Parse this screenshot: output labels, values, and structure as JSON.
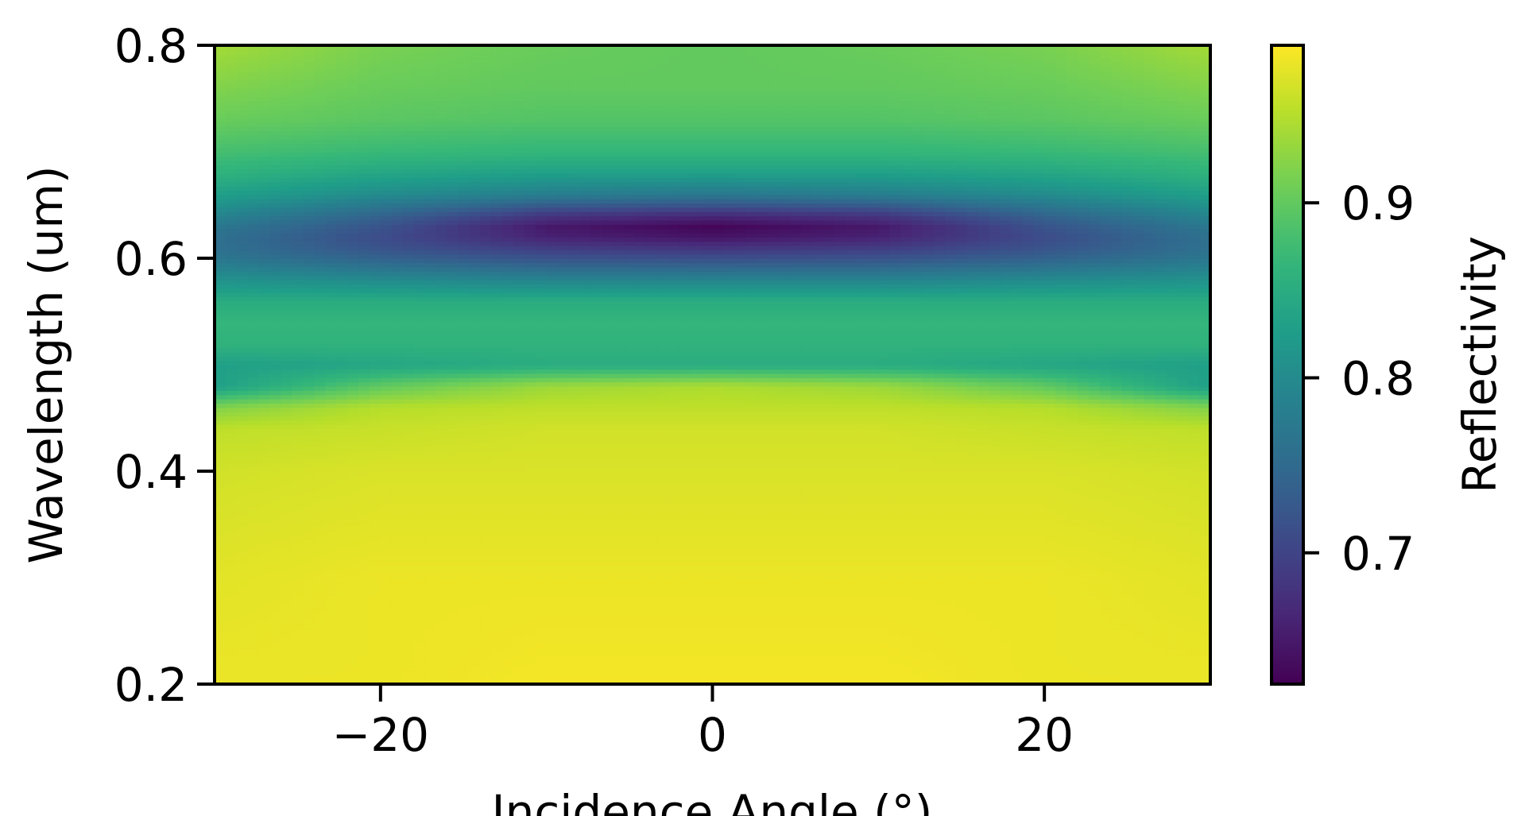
{
  "chart_data": {
    "type": "heatmap",
    "title": "",
    "xlabel": "Incidence Angle (°)",
    "ylabel": "Wavelength (um)",
    "xlim": [
      -30,
      30
    ],
    "ylim": [
      0.2,
      0.8
    ],
    "x_ticks": [
      -20,
      0,
      20
    ],
    "x_tick_labels": [
      "−20",
      "0",
      "20"
    ],
    "y_ticks": [
      0.2,
      0.4,
      0.6,
      0.8
    ],
    "y_tick_labels": [
      "0.2",
      "0.4",
      "0.6",
      "0.8"
    ],
    "grid": false,
    "colormap": "viridis",
    "colorbar": {
      "label": "Reflectivity",
      "range": [
        0.625,
        0.99
      ],
      "ticks": [
        0.7,
        0.8,
        0.9
      ],
      "tick_labels": [
        "0.7",
        "0.8",
        "0.9"
      ],
      "placement": "right"
    },
    "wavelengths": [
      0.2,
      0.3,
      0.35,
      0.4,
      0.44,
      0.46,
      0.48,
      0.5,
      0.52,
      0.54,
      0.56,
      0.58,
      0.6,
      0.61,
      0.62,
      0.63,
      0.64,
      0.65,
      0.66,
      0.68,
      0.7,
      0.73,
      0.76,
      0.8
    ],
    "angles": [
      -30,
      -20,
      -10,
      0,
      10,
      20,
      30
    ],
    "reflectivity": [
      [
        0.98,
        0.98,
        0.985,
        0.985,
        0.985,
        0.98,
        0.98
      ],
      [
        0.975,
        0.98,
        0.98,
        0.98,
        0.98,
        0.98,
        0.975
      ],
      [
        0.97,
        0.975,
        0.975,
        0.975,
        0.975,
        0.975,
        0.97
      ],
      [
        0.965,
        0.97,
        0.97,
        0.97,
        0.97,
        0.97,
        0.965
      ],
      [
        0.955,
        0.96,
        0.965,
        0.965,
        0.965,
        0.96,
        0.955
      ],
      [
        0.92,
        0.95,
        0.955,
        0.955,
        0.955,
        0.95,
        0.92
      ],
      [
        0.83,
        0.9,
        0.935,
        0.945,
        0.935,
        0.9,
        0.83
      ],
      [
        0.83,
        0.84,
        0.85,
        0.85,
        0.85,
        0.84,
        0.83
      ],
      [
        0.86,
        0.86,
        0.86,
        0.86,
        0.86,
        0.86,
        0.86
      ],
      [
        0.865,
        0.865,
        0.865,
        0.865,
        0.865,
        0.865,
        0.865
      ],
      [
        0.85,
        0.85,
        0.85,
        0.85,
        0.85,
        0.85,
        0.85
      ],
      [
        0.81,
        0.8,
        0.79,
        0.79,
        0.79,
        0.8,
        0.81
      ],
      [
        0.77,
        0.74,
        0.72,
        0.715,
        0.72,
        0.74,
        0.77
      ],
      [
        0.76,
        0.72,
        0.69,
        0.68,
        0.69,
        0.72,
        0.76
      ],
      [
        0.76,
        0.71,
        0.66,
        0.645,
        0.66,
        0.71,
        0.76
      ],
      [
        0.77,
        0.72,
        0.65,
        0.63,
        0.65,
        0.72,
        0.77
      ],
      [
        0.79,
        0.74,
        0.68,
        0.665,
        0.68,
        0.74,
        0.79
      ],
      [
        0.81,
        0.77,
        0.73,
        0.72,
        0.73,
        0.77,
        0.81
      ],
      [
        0.83,
        0.8,
        0.78,
        0.77,
        0.78,
        0.8,
        0.83
      ],
      [
        0.86,
        0.84,
        0.83,
        0.83,
        0.83,
        0.84,
        0.86
      ],
      [
        0.88,
        0.87,
        0.865,
        0.865,
        0.865,
        0.87,
        0.88
      ],
      [
        0.905,
        0.895,
        0.89,
        0.89,
        0.89,
        0.895,
        0.905
      ],
      [
        0.92,
        0.905,
        0.9,
        0.9,
        0.9,
        0.905,
        0.92
      ],
      [
        0.94,
        0.915,
        0.905,
        0.9,
        0.905,
        0.915,
        0.94
      ]
    ]
  }
}
